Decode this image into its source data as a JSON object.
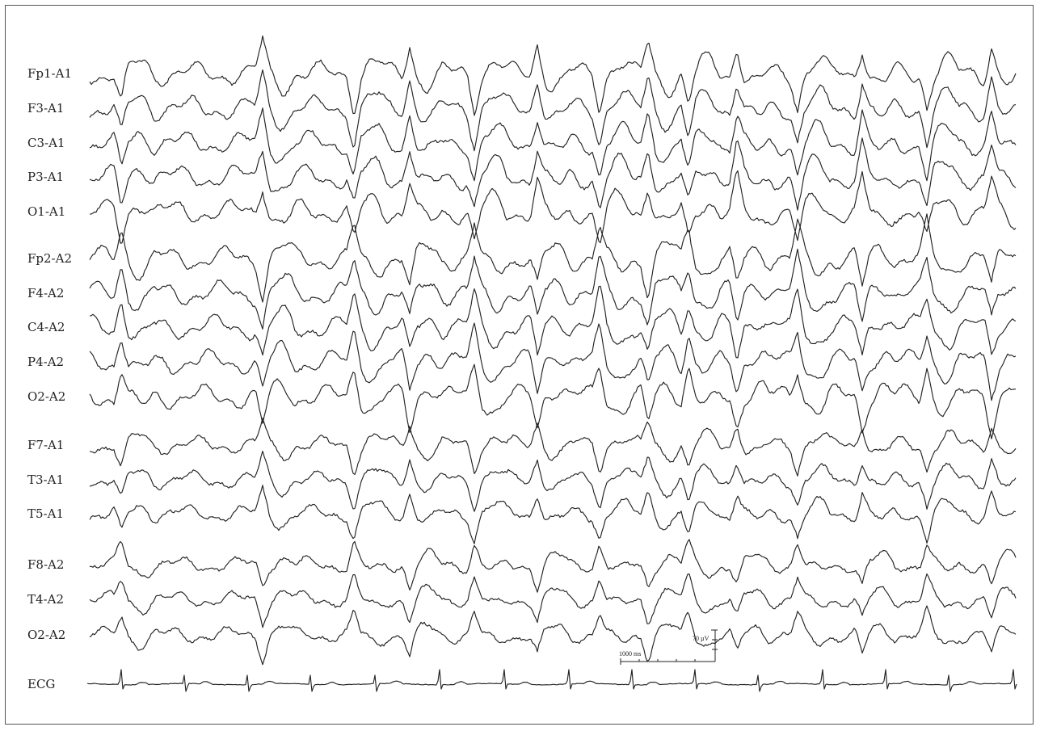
{
  "channels": [
    {
      "label": "Fp1-A1",
      "group": 1
    },
    {
      "label": "F3-A1",
      "group": 1
    },
    {
      "label": "C3-A1",
      "group": 1
    },
    {
      "label": "P3-A1",
      "group": 1
    },
    {
      "label": "O1-A1",
      "group": 1
    },
    {
      "label": "Fp2-A2",
      "group": 2
    },
    {
      "label": "F4-A2",
      "group": 2
    },
    {
      "label": "C4-A2",
      "group": 2
    },
    {
      "label": "P4-A2",
      "group": 2
    },
    {
      "label": "O2-A2",
      "group": 2
    },
    {
      "label": "F7-A1",
      "group": 3
    },
    {
      "label": "T3-A1",
      "group": 3
    },
    {
      "label": "T5-A1",
      "group": 3
    },
    {
      "label": "F8-A2",
      "group": 4
    },
    {
      "label": "T4-A2",
      "group": 4
    },
    {
      "label": "O2-A2",
      "group": 4
    },
    {
      "label": "ECG",
      "group": 5
    }
  ],
  "scale_bar": {
    "time_label": "1000 ms",
    "amplitude_label": "70 µV"
  },
  "colors": {
    "trace": "#222222",
    "background": "#ffffff",
    "border": "#555555"
  }
}
